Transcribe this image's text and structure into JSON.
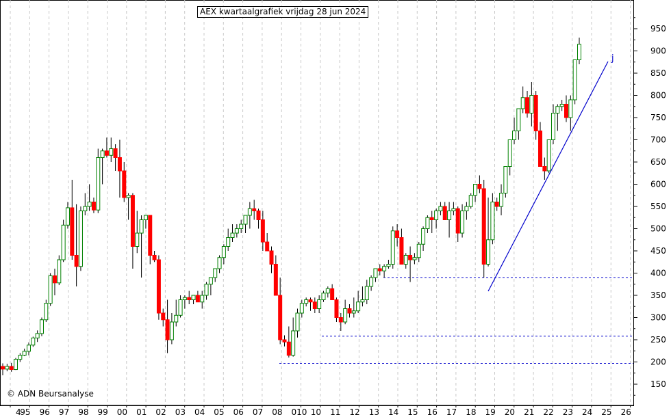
{
  "chart_data": {
    "type": "candlestick",
    "title": "AEX kwartaalgrafiek vrijdag 28 jun 2024",
    "credit": "© ADN Beursanalyse",
    "trendline_label": "j",
    "ylim": [
      100,
      1000
    ],
    "y_ticks": [
      150,
      200,
      250,
      300,
      350,
      400,
      450,
      500,
      550,
      600,
      650,
      700,
      750,
      800,
      850,
      900,
      950
    ],
    "x_ticks": [
      "4",
      "95",
      "96",
      "97",
      "98",
      "99",
      "00",
      "01",
      "02",
      "03",
      "04",
      "05",
      "06",
      "07",
      "08",
      "010",
      "10",
      "11",
      "12",
      "13",
      "14",
      "15",
      "16",
      "17",
      "18",
      "19",
      "20",
      "21",
      "22",
      "23",
      "24",
      "25",
      "26"
    ],
    "grid": true,
    "colors": {
      "up": "#008000",
      "down": "#ff0000",
      "trend": "#0000cc"
    },
    "support_levels": [
      {
        "value": 390,
        "from": "2015"
      },
      {
        "value": 258,
        "from": "2011"
      },
      {
        "value": 197,
        "from": "2009"
      }
    ],
    "trendline": {
      "from": [
        "2020.0",
        355
      ],
      "to": [
        "2025.2",
        870
      ]
    },
    "candles": [
      [
        190,
        170,
        197,
        184
      ],
      [
        184,
        179,
        196,
        190
      ],
      [
        190,
        178,
        198,
        183
      ],
      [
        183,
        182,
        209,
        206
      ],
      [
        206,
        200,
        220,
        215
      ],
      [
        215,
        213,
        230,
        224
      ],
      [
        224,
        215,
        244,
        238
      ],
      [
        238,
        234,
        257,
        254
      ],
      [
        254,
        245,
        271,
        264
      ],
      [
        264,
        258,
        300,
        295
      ],
      [
        295,
        290,
        340,
        332
      ],
      [
        332,
        326,
        400,
        394
      ],
      [
        394,
        350,
        410,
        378
      ],
      [
        378,
        373,
        440,
        430
      ],
      [
        430,
        425,
        520,
        508
      ],
      [
        508,
        500,
        560,
        547
      ],
      [
        547,
        430,
        610,
        440
      ],
      [
        440,
        370,
        555,
        415
      ],
      [
        415,
        405,
        550,
        540
      ],
      [
        540,
        530,
        580,
        550
      ],
      [
        550,
        540,
        600,
        560
      ],
      [
        560,
        535,
        570,
        542
      ],
      [
        542,
        535,
        680,
        660
      ],
      [
        660,
        600,
        680,
        675
      ],
      [
        675,
        660,
        705,
        665
      ],
      [
        665,
        650,
        705,
        680
      ],
      [
        680,
        630,
        690,
        660
      ],
      [
        660,
        570,
        700,
        630
      ],
      [
        630,
        560,
        650,
        570
      ],
      [
        570,
        520,
        580,
        575
      ],
      [
        575,
        410,
        580,
        460
      ],
      [
        460,
        445,
        540,
        490
      ],
      [
        490,
        390,
        530,
        520
      ],
      [
        520,
        500,
        530,
        530
      ],
      [
        530,
        420,
        530,
        440
      ],
      [
        440,
        425,
        450,
        430
      ],
      [
        430,
        295,
        440,
        310
      ],
      [
        310,
        280,
        320,
        295
      ],
      [
        295,
        220,
        340,
        250
      ],
      [
        250,
        240,
        310,
        290
      ],
      [
        290,
        280,
        340,
        305
      ],
      [
        305,
        300,
        350,
        340
      ],
      [
        340,
        320,
        350,
        345
      ],
      [
        345,
        330,
        360,
        340
      ],
      [
        340,
        330,
        345,
        350
      ],
      [
        350,
        340,
        360,
        335
      ],
      [
        335,
        320,
        360,
        350
      ],
      [
        350,
        340,
        380,
        375
      ],
      [
        375,
        350,
        390,
        390
      ],
      [
        390,
        380,
        400,
        410
      ],
      [
        410,
        400,
        440,
        435
      ],
      [
        435,
        420,
        465,
        460
      ],
      [
        460,
        450,
        500,
        480
      ],
      [
        480,
        470,
        510,
        490
      ],
      [
        490,
        480,
        510,
        500
      ],
      [
        500,
        490,
        520,
        510
      ],
      [
        510,
        490,
        525,
        530
      ],
      [
        530,
        500,
        560,
        545
      ],
      [
        545,
        520,
        565,
        540
      ],
      [
        540,
        500,
        545,
        520
      ],
      [
        520,
        450,
        540,
        470
      ],
      [
        470,
        460,
        490,
        450
      ],
      [
        450,
        400,
        460,
        420
      ],
      [
        420,
        390,
        440,
        350
      ],
      [
        350,
        240,
        390,
        250
      ],
      [
        250,
        235,
        260,
        245
      ],
      [
        245,
        210,
        280,
        215
      ],
      [
        215,
        212,
        300,
        270
      ],
      [
        270,
        255,
        320,
        310
      ],
      [
        310,
        300,
        340,
        332
      ],
      [
        332,
        325,
        345,
        340
      ],
      [
        340,
        315,
        345,
        335
      ],
      [
        335,
        310,
        345,
        320
      ],
      [
        320,
        310,
        350,
        340
      ],
      [
        340,
        335,
        360,
        355
      ],
      [
        355,
        345,
        370,
        365
      ],
      [
        365,
        355,
        375,
        340
      ],
      [
        340,
        290,
        345,
        300
      ],
      [
        300,
        270,
        310,
        290
      ],
      [
        290,
        285,
        340,
        320
      ],
      [
        320,
        300,
        330,
        310
      ],
      [
        310,
        300,
        345,
        315
      ],
      [
        315,
        310,
        360,
        335
      ],
      [
        335,
        325,
        370,
        340
      ],
      [
        340,
        330,
        385,
        370
      ],
      [
        370,
        360,
        395,
        390
      ],
      [
        390,
        380,
        410,
        410
      ],
      [
        410,
        395,
        420,
        405
      ],
      [
        405,
        390,
        420,
        415
      ],
      [
        415,
        410,
        430,
        420
      ],
      [
        420,
        410,
        505,
        495
      ],
      [
        495,
        460,
        510,
        480
      ],
      [
        480,
        425,
        500,
        420
      ],
      [
        420,
        410,
        445,
        440
      ],
      [
        440,
        380,
        460,
        430
      ],
      [
        430,
        420,
        445,
        435
      ],
      [
        435,
        425,
        470,
        465
      ],
      [
        465,
        450,
        505,
        500
      ],
      [
        500,
        490,
        530,
        525
      ],
      [
        525,
        490,
        540,
        520
      ],
      [
        520,
        500,
        545,
        540
      ],
      [
        540,
        530,
        560,
        550
      ],
      [
        550,
        530,
        560,
        520
      ],
      [
        520,
        480,
        560,
        540
      ],
      [
        540,
        530,
        560,
        545
      ],
      [
        545,
        470,
        550,
        490
      ],
      [
        490,
        480,
        555,
        540
      ],
      [
        540,
        520,
        560,
        550
      ],
      [
        550,
        545,
        580,
        575
      ],
      [
        575,
        560,
        600,
        600
      ],
      [
        600,
        580,
        620,
        590
      ],
      [
        590,
        390,
        610,
        420
      ],
      [
        420,
        415,
        570,
        475
      ],
      [
        475,
        465,
        580,
        560
      ],
      [
        560,
        540,
        570,
        550
      ],
      [
        550,
        530,
        600,
        580
      ],
      [
        580,
        570,
        640,
        640
      ],
      [
        640,
        620,
        700,
        700
      ],
      [
        700,
        690,
        750,
        720
      ],
      [
        720,
        700,
        770,
        770
      ],
      [
        770,
        760,
        820,
        795
      ],
      [
        795,
        750,
        810,
        760
      ],
      [
        760,
        730,
        830,
        800
      ],
      [
        800,
        700,
        810,
        720
      ],
      [
        720,
        650,
        740,
        640
      ],
      [
        640,
        610,
        660,
        630
      ],
      [
        630,
        625,
        690,
        700
      ],
      [
        700,
        690,
        780,
        760
      ],
      [
        760,
        720,
        780,
        775
      ],
      [
        775,
        765,
        790,
        780
      ],
      [
        780,
        740,
        800,
        750
      ],
      [
        750,
        720,
        800,
        790
      ],
      [
        790,
        780,
        840,
        880
      ],
      [
        880,
        870,
        930,
        915
      ]
    ]
  }
}
